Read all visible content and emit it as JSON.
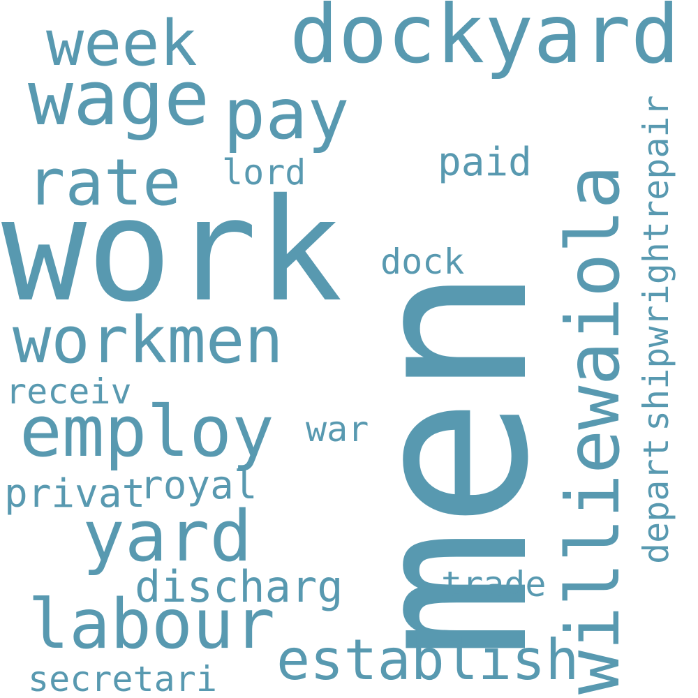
{
  "color": "#5899b0",
  "words": [
    {
      "text": "men"
    },
    {
      "text": "work"
    },
    {
      "text": "dockyard"
    },
    {
      "text": "williewaiola"
    },
    {
      "text": "wage"
    },
    {
      "text": "workmen"
    },
    {
      "text": "employ"
    },
    {
      "text": "week"
    },
    {
      "text": "pay"
    },
    {
      "text": "rate"
    },
    {
      "text": "yard"
    },
    {
      "text": "labour"
    },
    {
      "text": "establish"
    },
    {
      "text": "shipwrightrepair"
    },
    {
      "text": "lord"
    },
    {
      "text": "paid"
    },
    {
      "text": "dock"
    },
    {
      "text": "receiv"
    },
    {
      "text": "war"
    },
    {
      "text": "privat"
    },
    {
      "text": "royal"
    },
    {
      "text": "depart"
    },
    {
      "text": "discharg"
    },
    {
      "text": "trade"
    },
    {
      "text": "secretari"
    }
  ]
}
